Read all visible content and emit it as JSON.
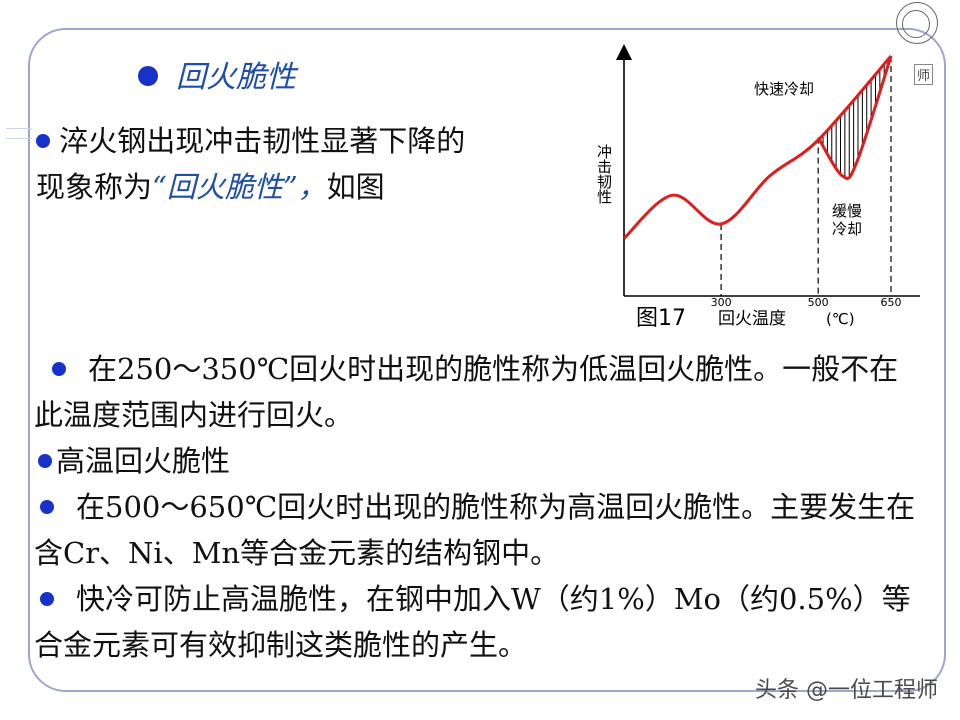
{
  "title": "回火脆性",
  "intro": {
    "text_a": "淬火钢出现冲击韧性显著下降的现象称为",
    "quote": "“回火脆性”，",
    "text_b": "如图"
  },
  "low_temp": "在250～350℃回火时出现的脆性称为低温回火脆性。一般不在此温度范围内进行回火。",
  "high_temp_heading": "高温回火脆性",
  "high_temp_desc": "在500～650℃回火时出现的脆性称为高温回火脆性。主要发生在含Cr、Ni、Mn等合金元素的结构钢中。",
  "prevention": "快冷可防止高温脆性，在钢中加入W（约1%）Mo（约0.5%）等合金元素可有效抑制这类脆性的产生。",
  "figure_label": "图17",
  "deco_label": "师",
  "watermark": "头条 @一位工程师",
  "chart_data": {
    "type": "line",
    "xlabel": "回火温度",
    "xunit": "(℃)",
    "ylabel": "冲击韧性",
    "x_ticks": [
      300,
      500,
      650
    ],
    "series": [
      {
        "name": "快速冷却",
        "points": [
          [
            100,
            0.24
          ],
          [
            200,
            0.42
          ],
          [
            300,
            0.3
          ],
          [
            400,
            0.5
          ],
          [
            500,
            0.65
          ],
          [
            650,
            1.0
          ]
        ]
      },
      {
        "name": "缓慢冷却",
        "points": [
          [
            500,
            0.66
          ],
          [
            550,
            0.5
          ],
          [
            580,
            0.56
          ],
          [
            650,
            1.0
          ]
        ]
      }
    ],
    "shaded_region": "快速冷却与缓慢冷却曲线之间",
    "colors": {
      "curve": "#e21b1b",
      "axis": "#000000"
    }
  }
}
